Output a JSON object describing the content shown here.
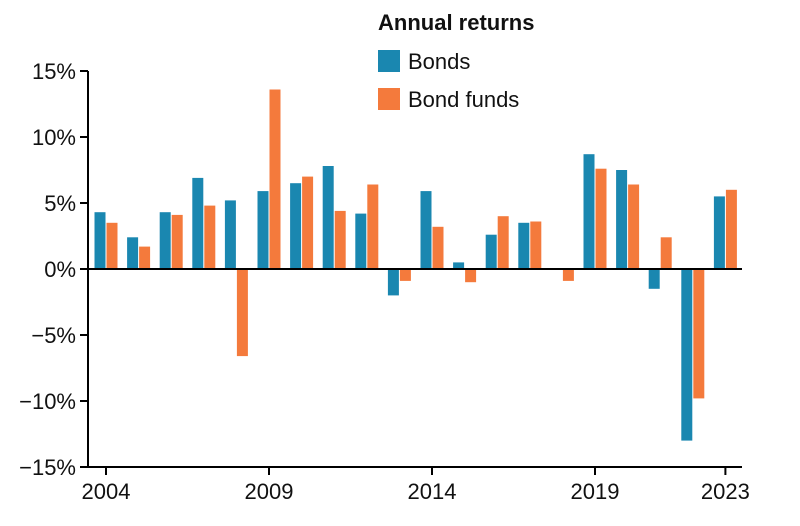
{
  "chart_data": {
    "type": "bar",
    "legend_title": "Annual returns",
    "legend_position": "top-center",
    "categories": [
      "2004",
      "2005",
      "2006",
      "2007",
      "2008",
      "2009",
      "2010",
      "2011",
      "2012",
      "2013",
      "2014",
      "2015",
      "2016",
      "2017",
      "2018",
      "2019",
      "2020",
      "2021",
      "2022",
      "2023"
    ],
    "series": [
      {
        "name": "Bonds",
        "color": "#1a87b0",
        "values": [
          4.3,
          2.4,
          4.3,
          6.9,
          5.2,
          5.9,
          6.5,
          7.8,
          4.2,
          -2.0,
          5.9,
          0.5,
          2.6,
          3.5,
          0.0,
          8.7,
          7.5,
          -1.5,
          -13.0,
          5.5
        ]
      },
      {
        "name": "Bond funds",
        "color": "#f47a3c",
        "values": [
          3.5,
          1.7,
          4.1,
          4.8,
          -6.6,
          13.6,
          7.0,
          4.4,
          6.4,
          -0.9,
          3.2,
          -1.0,
          4.0,
          3.6,
          -0.9,
          7.6,
          6.4,
          2.4,
          -9.8,
          6.0
        ]
      }
    ],
    "x_tick_labels": [
      "2004",
      "2009",
      "2014",
      "2019",
      "2023"
    ],
    "y_ticks": [
      15,
      10,
      5,
      0,
      -5,
      -10,
      -15
    ],
    "y_tick_labels": [
      "15%",
      "10%",
      "5%",
      "0%",
      "−5%",
      "−10%",
      "−15%"
    ],
    "ylim": [
      -15,
      15
    ],
    "grid": false,
    "title": "",
    "xlabel": "",
    "ylabel": ""
  }
}
